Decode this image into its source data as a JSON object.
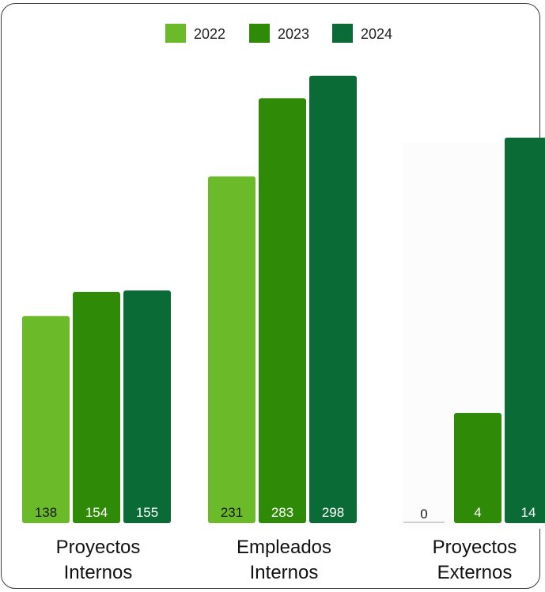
{
  "chart_data": {
    "type": "bar",
    "title": "",
    "xlabel": "",
    "ylabel": "",
    "legend_position": "top-center",
    "grid": false,
    "series": [
      {
        "name": "2022",
        "color": "#6aba2a"
      },
      {
        "name": "2023",
        "color": "#2f8a08"
      },
      {
        "name": "2024",
        "color": "#0b6b36"
      }
    ],
    "groups": [
      {
        "label_lines": [
          "Proyectos",
          "Internos"
        ],
        "values": [
          138,
          154,
          155
        ],
        "labels": [
          "138",
          "154",
          "155"
        ],
        "ylim": [
          0,
          310
        ]
      },
      {
        "label_lines": [
          "Empleados",
          "Internos"
        ],
        "values": [
          231,
          283,
          298
        ],
        "labels": [
          "231",
          "283",
          "298"
        ],
        "ylim": [
          0,
          310
        ]
      },
      {
        "label_lines": [
          "Proyectos",
          "Externos"
        ],
        "values": [
          0,
          4,
          14
        ],
        "labels": [
          "0",
          "4",
          "14"
        ],
        "ylim": [
          0,
          16.9
        ]
      }
    ]
  }
}
